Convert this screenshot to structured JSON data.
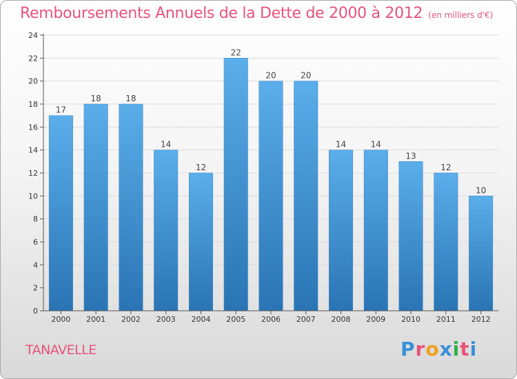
{
  "header": {
    "title": "Remboursements Annuels de la Dette de 2000 à 2012",
    "subtitle": "(en milliers d'€)"
  },
  "footer": {
    "commune": "TANAVELLE",
    "brand": "Proxiti"
  },
  "colors": {
    "accent": "#e8537a",
    "bar_top": "#5aaeea",
    "bar_bottom": "#2a74b4"
  },
  "chart_data": {
    "type": "bar",
    "title": "Remboursements Annuels de la Dette de 2000 à 2012",
    "xlabel": "",
    "ylabel": "",
    "ylim": [
      0,
      24
    ],
    "yticks": [
      0,
      2,
      4,
      6,
      8,
      10,
      12,
      14,
      16,
      18,
      20,
      22,
      24
    ],
    "grid": true,
    "categories": [
      "2000",
      "2001",
      "2002",
      "2003",
      "2004",
      "2005",
      "2006",
      "2007",
      "2008",
      "2009",
      "2010",
      "2011",
      "2012"
    ],
    "values": [
      17,
      18,
      18,
      14,
      12,
      22,
      20,
      20,
      14,
      14,
      13,
      12,
      10
    ]
  }
}
